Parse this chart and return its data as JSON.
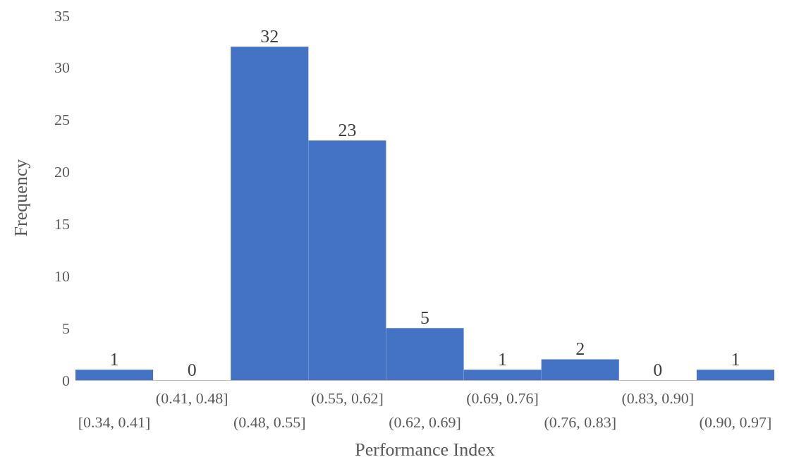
{
  "chart_data": {
    "type": "bar",
    "xlabel": "Performance Index",
    "ylabel": "Frequency",
    "categories": [
      "[0.34, 0.41]",
      "(0.41, 0.48]",
      "(0.48, 0.55]",
      "(0.55, 0.62]",
      "(0.62, 0.69]",
      "(0.69, 0.76]",
      "(0.76, 0.83]",
      "(0.83, 0.90]",
      "(0.90, 0.97]"
    ],
    "values": [
      1,
      0,
      32,
      23,
      5,
      1,
      2,
      0,
      1
    ],
    "color": "#4472c4",
    "ylim": [
      0,
      35
    ],
    "yticks": [
      0,
      5,
      10,
      15,
      20,
      25,
      30,
      35
    ],
    "grid": false,
    "data_labels": true
  }
}
